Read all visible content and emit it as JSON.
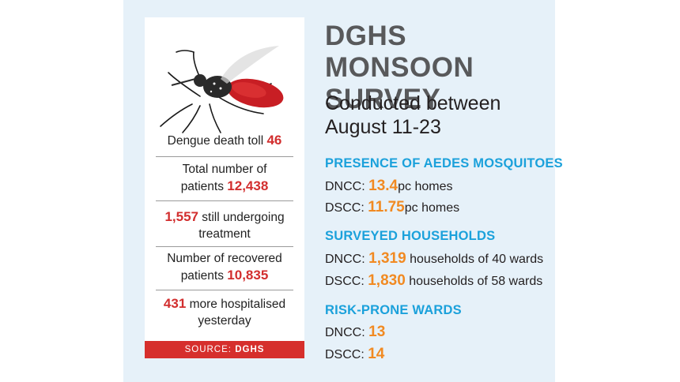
{
  "card": {
    "stats": [
      {
        "pre": "Dengue death toll",
        "value": "46"
      },
      {
        "pre": "Total number of",
        "line2": "patients",
        "value": "12,438"
      },
      {
        "value": "1,557",
        "post": "still undergoing",
        "line2": "treatment"
      },
      {
        "pre": "Number of recovered",
        "line2": "patients",
        "value": "10,835"
      },
      {
        "value": "431",
        "post": "more hospitalised",
        "line2": "yesterday"
      }
    ],
    "source_label": "SOURCE:",
    "source_value": "DGHS"
  },
  "title_line1": "DGHS MONSOON",
  "title_line2": "SURVEY",
  "subtitle_line1": "Conducted between",
  "subtitle_line2": "August 11-23",
  "sections": [
    {
      "heading": "PRESENCE OF AEDES MOSQUITOES",
      "rows": [
        {
          "label": "DNCC:",
          "value": "13.4",
          "suffix": "pc homes"
        },
        {
          "label": "DSCC:",
          "value": "11.75",
          "suffix": "pc homes"
        }
      ]
    },
    {
      "heading": "SURVEYED HOUSEHOLDS",
      "rows": [
        {
          "label": "DNCC:",
          "value": "1,319",
          "suffix": "households of 40 wards"
        },
        {
          "label": "DSCC:",
          "value": "1,830",
          "suffix": "households of 58 wards"
        }
      ]
    },
    {
      "heading": "RISK-PRONE WARDS",
      "rows": [
        {
          "label": "DNCC:",
          "value": "13",
          "suffix": ""
        },
        {
          "label": "DSCC:",
          "value": "14",
          "suffix": ""
        }
      ]
    }
  ],
  "colors": {
    "accent_red": "#d22e2e",
    "accent_orange": "#f18a22",
    "heading_blue": "#1ba1db",
    "panel": "#e6f1f9"
  },
  "icons": {
    "illustration": "mosquito-icon"
  }
}
